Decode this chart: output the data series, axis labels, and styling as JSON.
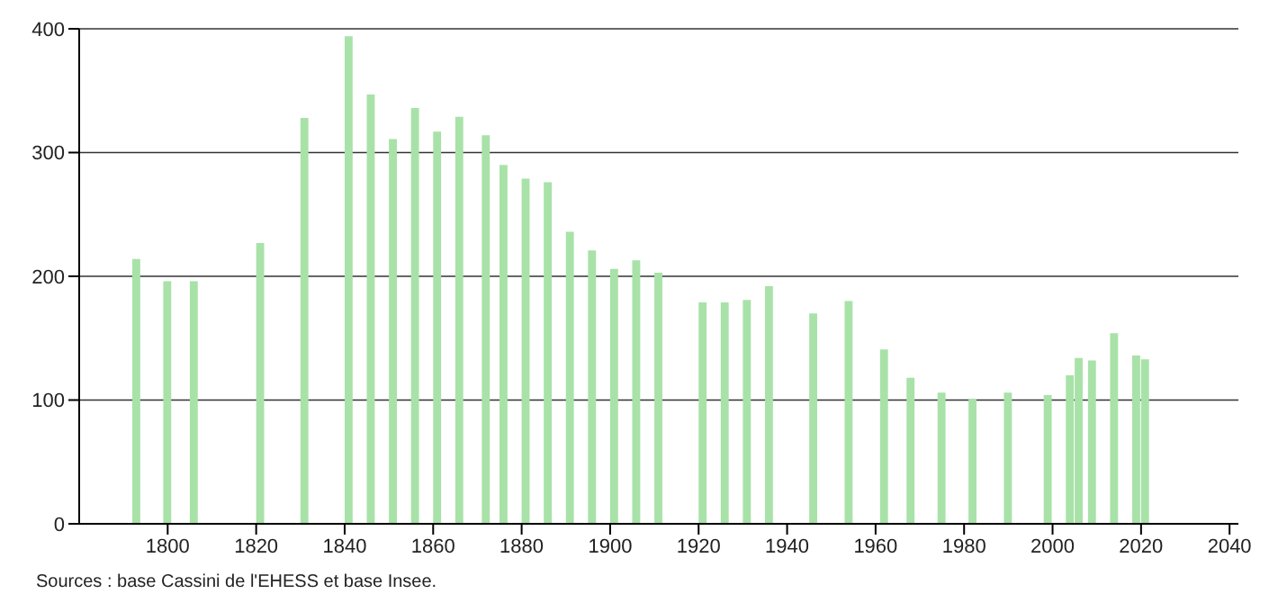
{
  "chart_data": {
    "type": "bar",
    "x": [
      1793,
      1800,
      1806,
      1821,
      1831,
      1841,
      1846,
      1851,
      1856,
      1861,
      1866,
      1872,
      1876,
      1881,
      1886,
      1891,
      1896,
      1901,
      1906,
      1911,
      1921,
      1926,
      1931,
      1936,
      1946,
      1954,
      1962,
      1968,
      1975,
      1982,
      1990,
      1999,
      2004,
      2006,
      2009,
      2014,
      2019,
      2021
    ],
    "values": [
      214,
      196,
      196,
      227,
      328,
      394,
      347,
      311,
      336,
      317,
      329,
      314,
      290,
      279,
      276,
      236,
      221,
      206,
      213,
      203,
      179,
      179,
      181,
      192,
      170,
      180,
      141,
      118,
      106,
      101,
      106,
      104,
      120,
      134,
      132,
      154,
      136,
      133
    ],
    "color": "#a8e2a8",
    "xlim": [
      1780,
      2042
    ],
    "xticks": [
      1800,
      1820,
      1840,
      1860,
      1880,
      1900,
      1920,
      1940,
      1960,
      1980,
      2000,
      2020,
      2040
    ],
    "ylim": [
      0,
      400
    ],
    "yticks": [
      0,
      100,
      200,
      300,
      400
    ],
    "grid": "y",
    "annotations": [
      "Sources : base Cassini de l'EHESS et base Insee."
    ]
  }
}
